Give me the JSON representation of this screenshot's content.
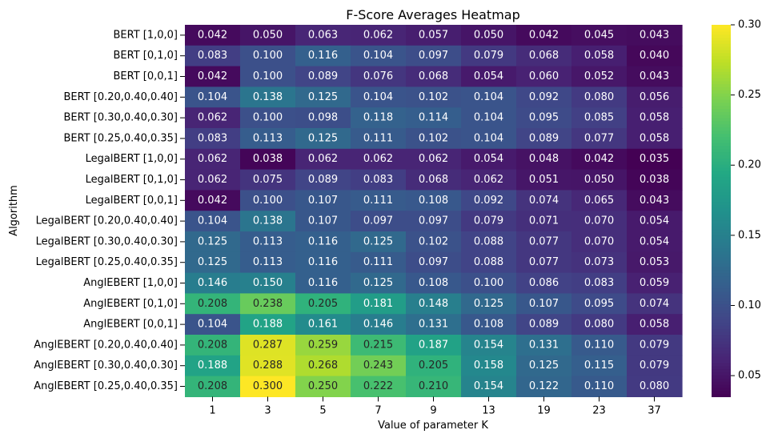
{
  "chart_data": {
    "type": "heatmap",
    "title": "F-Score Averages Heatmap",
    "xlabel": "Value of parameter K",
    "ylabel": "Algorithm",
    "x": [
      "1",
      "3",
      "5",
      "7",
      "9",
      "13",
      "19",
      "23",
      "37"
    ],
    "y": [
      "BERT [1,0,0]",
      "BERT [0,1,0]",
      "BERT [0,0,1]",
      "BERT [0.20,0.40,0.40]",
      "BERT [0.30,0.40,0.30]",
      "BERT [0.25,0.40,0.35]",
      "LegalBERT [1,0,0]",
      "LegalBERT [0,1,0]",
      "LegalBERT [0,0,1]",
      "LegalBERT [0.20,0.40,0.40]",
      "LegalBERT [0.30,0.40,0.30]",
      "LegalBERT [0.25,0.40,0.35]",
      "AnglEBERT [1,0,0]",
      "AnglEBERT [0,1,0]",
      "AnglEBERT [0,0,1]",
      "AnglEBERT [0.20,0.40,0.40]",
      "AnglEBERT [0.30,0.40,0.30]",
      "AnglEBERT [0.25,0.40,0.35]"
    ],
    "values": [
      [
        "0.042",
        "0.050",
        "0.063",
        "0.062",
        "0.057",
        "0.050",
        "0.042",
        "0.045",
        "0.043"
      ],
      [
        "0.083",
        "0.100",
        "0.116",
        "0.104",
        "0.097",
        "0.079",
        "0.068",
        "0.058",
        "0.040"
      ],
      [
        "0.042",
        "0.100",
        "0.089",
        "0.076",
        "0.068",
        "0.054",
        "0.060",
        "0.052",
        "0.043"
      ],
      [
        "0.104",
        "0.138",
        "0.125",
        "0.104",
        "0.102",
        "0.104",
        "0.092",
        "0.080",
        "0.056"
      ],
      [
        "0.062",
        "0.100",
        "0.098",
        "0.118",
        "0.114",
        "0.104",
        "0.095",
        "0.085",
        "0.058"
      ],
      [
        "0.083",
        "0.113",
        "0.125",
        "0.111",
        "0.102",
        "0.104",
        "0.089",
        "0.077",
        "0.058"
      ],
      [
        "0.062",
        "0.038",
        "0.062",
        "0.062",
        "0.062",
        "0.054",
        "0.048",
        "0.042",
        "0.035"
      ],
      [
        "0.062",
        "0.075",
        "0.089",
        "0.083",
        "0.068",
        "0.062",
        "0.051",
        "0.050",
        "0.038"
      ],
      [
        "0.042",
        "0.100",
        "0.107",
        "0.111",
        "0.108",
        "0.092",
        "0.074",
        "0.065",
        "0.043"
      ],
      [
        "0.104",
        "0.138",
        "0.107",
        "0.097",
        "0.097",
        "0.079",
        "0.071",
        "0.070",
        "0.054"
      ],
      [
        "0.125",
        "0.113",
        "0.116",
        "0.125",
        "0.102",
        "0.088",
        "0.077",
        "0.070",
        "0.054"
      ],
      [
        "0.125",
        "0.113",
        "0.116",
        "0.111",
        "0.097",
        "0.088",
        "0.077",
        "0.073",
        "0.053"
      ],
      [
        "0.146",
        "0.150",
        "0.116",
        "0.125",
        "0.108",
        "0.100",
        "0.086",
        "0.083",
        "0.059"
      ],
      [
        "0.208",
        "0.238",
        "0.205",
        "0.181",
        "0.148",
        "0.125",
        "0.107",
        "0.095",
        "0.074"
      ],
      [
        "0.104",
        "0.188",
        "0.161",
        "0.146",
        "0.131",
        "0.108",
        "0.089",
        "0.080",
        "0.058"
      ],
      [
        "0.208",
        "0.287",
        "0.259",
        "0.215",
        "0.187",
        "0.154",
        "0.131",
        "0.110",
        "0.079"
      ],
      [
        "0.188",
        "0.288",
        "0.268",
        "0.243",
        "0.205",
        "0.158",
        "0.125",
        "0.115",
        "0.079"
      ],
      [
        "0.208",
        "0.300",
        "0.250",
        "0.222",
        "0.210",
        "0.154",
        "0.122",
        "0.110",
        "0.080"
      ]
    ],
    "colormap": "viridis",
    "colorbar": {
      "vmin": 0.035,
      "vmax": 0.3,
      "ticks": [
        "0.05",
        "0.10",
        "0.15",
        "0.20",
        "0.25",
        "0.30"
      ]
    },
    "grid": false
  }
}
